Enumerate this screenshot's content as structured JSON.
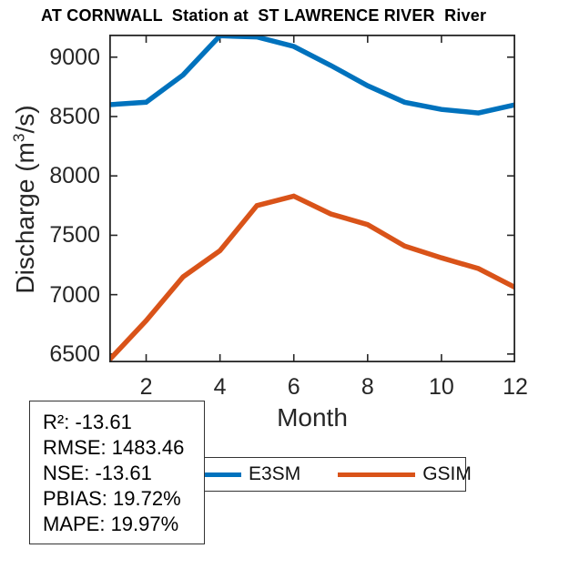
{
  "chart_data": {
    "type": "line",
    "title": "AT CORNWALL  Station at  ST LAWRENCE RIVER  River",
    "xlabel": "Month",
    "ylabel": "Discharge (m³/s)",
    "ylabel_parts": {
      "prefix": "Discharge (m",
      "sup": "3",
      "suffix": "/s)"
    },
    "x": [
      1,
      2,
      3,
      4,
      5,
      6,
      7,
      8,
      9,
      10,
      11,
      12
    ],
    "series": [
      {
        "name": "E3SM",
        "color": "#0072BD",
        "values": [
          8600,
          8620,
          8850,
          9180,
          9170,
          9090,
          8930,
          8760,
          8620,
          8560,
          8530,
          8600
        ]
      },
      {
        "name": "GSIM",
        "color": "#D95319",
        "values": [
          6450,
          6780,
          7150,
          7370,
          7750,
          7830,
          7680,
          7590,
          7410,
          7310,
          7220,
          7060
        ]
      }
    ],
    "xlim": [
      1,
      12
    ],
    "ylim": [
      6430,
      9190
    ],
    "xticks": [
      2,
      4,
      6,
      8,
      10,
      12
    ],
    "yticks": [
      6500,
      7000,
      7500,
      8000,
      8500,
      9000
    ],
    "grid": false,
    "legend_position": "bottom-center",
    "axis_color": "#262626"
  },
  "stats_box": {
    "lines": [
      "R²: -13.61",
      "RMSE: 1483.46",
      "NSE: -13.61",
      "PBIAS: 19.72%",
      "MAPE: 19.97%"
    ]
  }
}
